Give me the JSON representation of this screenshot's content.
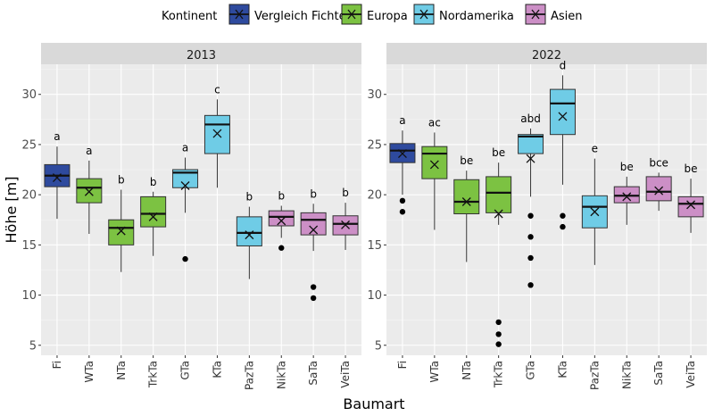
{
  "chart_data": {
    "type": "boxplot",
    "xlabel": "Baumart",
    "ylabel": "Höhe [m]",
    "ylim": [
      4,
      33
    ],
    "yticks": [
      5,
      10,
      15,
      20,
      25,
      30
    ],
    "legend": {
      "title": "Kontinent",
      "position": "top",
      "entries": [
        {
          "name": "Vergleich Fichte",
          "color": "#2e4a9e"
        },
        {
          "name": "Europa",
          "color": "#7cc242"
        },
        {
          "name": "Nordamerika",
          "color": "#6fcce6"
        },
        {
          "name": "Asien",
          "color": "#cc8fc6"
        }
      ]
    },
    "colors": {
      "Vergleich Fichte": "#2e4a9e",
      "Europa": "#7cc242",
      "Nordamerika": "#6fcce6",
      "Asien": "#cc8fc6"
    },
    "categories": [
      "Fi",
      "WTa",
      "NTa",
      "TrkTa",
      "GTa",
      "KTa",
      "PazTa",
      "NikTa",
      "SaTa",
      "VeiTa"
    ],
    "panels": [
      {
        "title": "2013",
        "boxes": [
          {
            "cat": "Fi",
            "group": "Vergleich Fichte",
            "low": 17.6,
            "q1": 20.8,
            "median": 21.9,
            "q3": 23.0,
            "high": 24.8,
            "mean": 21.7,
            "outliers": [],
            "label": "a"
          },
          {
            "cat": "WTa",
            "group": "Europa",
            "low": 16.1,
            "q1": 19.2,
            "median": 20.7,
            "q3": 21.6,
            "high": 23.4,
            "mean": 20.3,
            "outliers": [],
            "label": "a"
          },
          {
            "cat": "NTa",
            "group": "Europa",
            "low": 12.3,
            "q1": 15.0,
            "median": 16.7,
            "q3": 17.5,
            "high": 20.5,
            "mean": 16.4,
            "outliers": [],
            "label": "b"
          },
          {
            "cat": "TrkTa",
            "group": "Europa",
            "low": 13.9,
            "q1": 16.8,
            "median": 18.1,
            "q3": 19.8,
            "high": 20.3,
            "mean": 17.8,
            "outliers": [],
            "label": "b"
          },
          {
            "cat": "GTa",
            "group": "Nordamerika",
            "low": 18.2,
            "q1": 20.7,
            "median": 22.2,
            "q3": 22.5,
            "high": 23.7,
            "mean": 20.9,
            "outliers": [
              13.6
            ],
            "label": "a"
          },
          {
            "cat": "KTa",
            "group": "Nordamerika",
            "low": 20.7,
            "q1": 24.1,
            "median": 27.0,
            "q3": 27.9,
            "high": 29.5,
            "mean": 26.1,
            "outliers": [],
            "label": "c"
          },
          {
            "cat": "PazTa",
            "group": "Nordamerika",
            "low": 11.6,
            "q1": 14.9,
            "median": 16.2,
            "q3": 17.8,
            "high": 18.8,
            "mean": 16.0,
            "outliers": [],
            "label": "b"
          },
          {
            "cat": "NikTa",
            "group": "Asien",
            "low": 15.7,
            "q1": 16.9,
            "median": 17.8,
            "q3": 18.4,
            "high": 18.9,
            "mean": 17.4,
            "outliers": [
              14.7
            ],
            "label": "b"
          },
          {
            "cat": "SaTa",
            "group": "Asien",
            "low": 14.4,
            "q1": 16.0,
            "median": 17.5,
            "q3": 18.2,
            "high": 19.1,
            "mean": 16.5,
            "outliers": [
              10.8,
              9.7
            ],
            "label": "b"
          },
          {
            "cat": "VeiTa",
            "group": "Asien",
            "low": 14.5,
            "q1": 16.0,
            "median": 17.1,
            "q3": 17.9,
            "high": 19.2,
            "mean": 17.0,
            "outliers": [],
            "label": "b"
          }
        ]
      },
      {
        "title": "2022",
        "boxes": [
          {
            "cat": "Fi",
            "group": "Vergleich Fichte",
            "low": 20.0,
            "q1": 23.2,
            "median": 24.4,
            "q3": 25.1,
            "high": 26.4,
            "mean": 24.1,
            "outliers": [
              19.4,
              18.3
            ],
            "label": "a"
          },
          {
            "cat": "WTa",
            "group": "Europa",
            "low": 16.5,
            "q1": 21.6,
            "median": 24.1,
            "q3": 24.8,
            "high": 26.2,
            "mean": 23.0,
            "outliers": [],
            "label": "ac"
          },
          {
            "cat": "NTa",
            "group": "Europa",
            "low": 13.3,
            "q1": 18.1,
            "median": 19.3,
            "q3": 21.5,
            "high": 22.4,
            "mean": 19.3,
            "outliers": [],
            "label": "be"
          },
          {
            "cat": "TrkTa",
            "group": "Europa",
            "low": 17.0,
            "q1": 18.2,
            "median": 20.2,
            "q3": 21.8,
            "high": 23.2,
            "mean": 18.1,
            "outliers": [
              7.3,
              6.1,
              5.1
            ],
            "label": "be"
          },
          {
            "cat": "GTa",
            "group": "Nordamerika",
            "low": 19.8,
            "q1": 24.1,
            "median": 25.8,
            "q3": 26.0,
            "high": 26.6,
            "mean": 23.6,
            "outliers": [
              17.9,
              15.8,
              13.7,
              11.0
            ],
            "label": "abd"
          },
          {
            "cat": "KTa",
            "group": "Nordamerika",
            "low": 21.0,
            "q1": 26.0,
            "median": 29.1,
            "q3": 30.5,
            "high": 31.9,
            "mean": 27.8,
            "outliers": [
              17.9,
              16.8
            ],
            "label": "d"
          },
          {
            "cat": "PazTa",
            "group": "Nordamerika",
            "low": 13.0,
            "q1": 16.7,
            "median": 18.8,
            "q3": 19.9,
            "high": 23.6,
            "mean": 18.3,
            "outliers": [],
            "label": "e"
          },
          {
            "cat": "NikTa",
            "group": "Asien",
            "low": 17.0,
            "q1": 19.2,
            "median": 19.9,
            "q3": 20.8,
            "high": 21.8,
            "mean": 19.8,
            "outliers": [],
            "label": "be"
          },
          {
            "cat": "SaTa",
            "group": "Asien",
            "low": 18.4,
            "q1": 19.4,
            "median": 20.3,
            "q3": 21.8,
            "high": 22.2,
            "mean": 20.4,
            "outliers": [],
            "label": "bce"
          },
          {
            "cat": "VeiTa",
            "group": "Asien",
            "low": 16.2,
            "q1": 17.8,
            "median": 19.1,
            "q3": 19.8,
            "high": 21.6,
            "mean": 19.0,
            "outliers": [],
            "label": "be"
          }
        ]
      }
    ]
  }
}
